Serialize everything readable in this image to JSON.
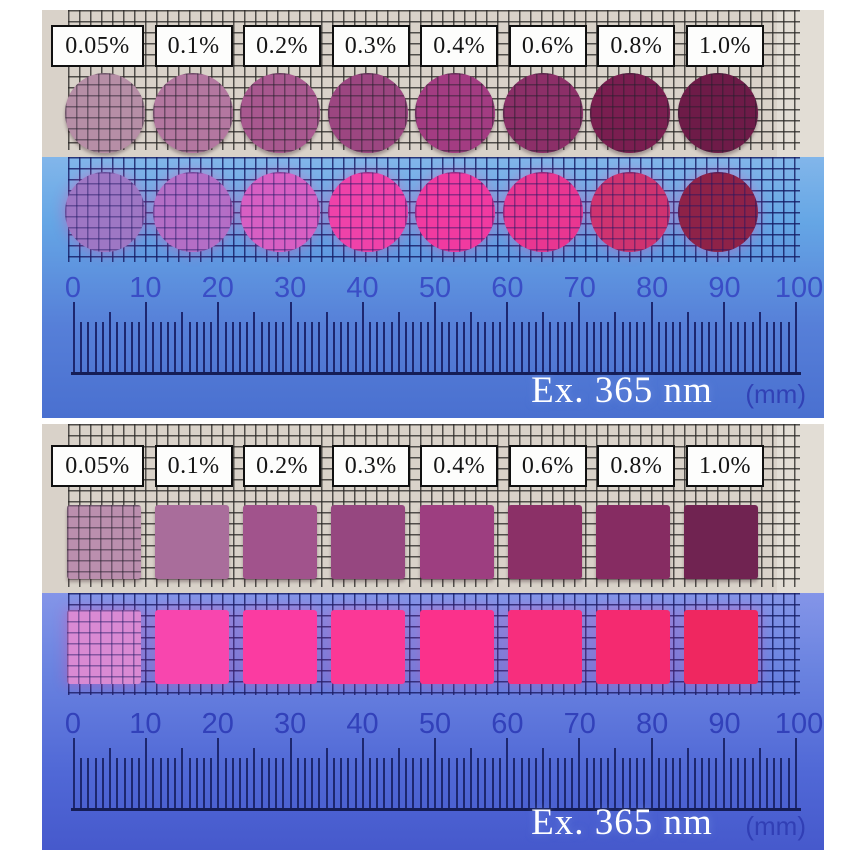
{
  "figure": {
    "uv_caption": "Ex. 365 nm",
    "unit_label": "(mm)",
    "ruler_numbers": [
      "0",
      "10",
      "20",
      "30",
      "40",
      "50",
      "60",
      "70",
      "80",
      "90",
      "100"
    ],
    "panels": [
      {
        "name": "disc-films",
        "shape": "circle",
        "samples": [
          {
            "label": "0.05%",
            "daylight": "#b68ea6",
            "uv": "#9e77c4",
            "translucent": true
          },
          {
            "label": "0.1%",
            "daylight": "#b377a0",
            "uv": "#b46ec6",
            "translucent": true
          },
          {
            "label": "0.2%",
            "daylight": "#a8588f",
            "uv": "#d75fc3",
            "translucent": true
          },
          {
            "label": "0.3%",
            "daylight": "#9c4681",
            "uv": "#ef42a9",
            "translucent": true
          },
          {
            "label": "0.4%",
            "daylight": "#a33c82",
            "uv": "#f03aa0",
            "translucent": true
          },
          {
            "label": "0.6%",
            "daylight": "#8c2f68",
            "uv": "#e93691",
            "translucent": true
          },
          {
            "label": "0.8%",
            "daylight": "#7a1e50",
            "uv": "#cf3370",
            "translucent": true
          },
          {
            "label": "1.0%",
            "daylight": "#6e1b48",
            "uv": "#8e2248",
            "translucent": true
          }
        ]
      },
      {
        "name": "square-films",
        "shape": "square",
        "samples": [
          {
            "label": "0.05%",
            "daylight": "#bb8fae",
            "uv": "#d98ad3",
            "translucent": true
          },
          {
            "label": "0.1%",
            "daylight": "#a96d9b",
            "uv": "#f846ae",
            "translucent": false
          },
          {
            "label": "0.2%",
            "daylight": "#a1538c",
            "uv": "#fb3ba1",
            "translucent": false
          },
          {
            "label": "0.3%",
            "daylight": "#964780",
            "uv": "#fb3896",
            "translucent": false
          },
          {
            "label": "0.4%",
            "daylight": "#9d3e80",
            "uv": "#fb318b",
            "translucent": false
          },
          {
            "label": "0.6%",
            "daylight": "#8b3067",
            "uv": "#f72e7d",
            "translucent": false
          },
          {
            "label": "0.8%",
            "daylight": "#862c62",
            "uv": "#f42a70",
            "translucent": false
          },
          {
            "label": "1.0%",
            "daylight": "#702351",
            "uv": "#ef2760",
            "translucent": false
          }
        ]
      }
    ]
  }
}
